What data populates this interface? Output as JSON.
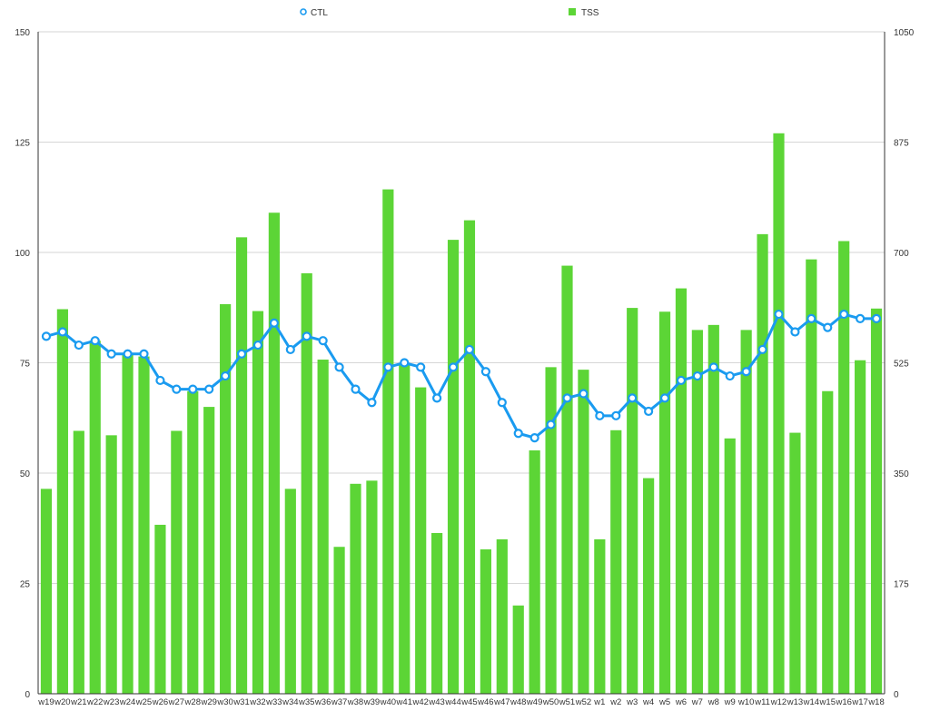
{
  "chart_data": {
    "type": "bar",
    "categories": [
      "w19",
      "w20",
      "w21",
      "w22",
      "w23",
      "w24",
      "w25",
      "w26",
      "w27",
      "w28",
      "w29",
      "w30",
      "w31",
      "w32",
      "w33",
      "w34",
      "w35",
      "w36",
      "w37",
      "w38",
      "w39",
      "w40",
      "w41",
      "w42",
      "w43",
      "w44",
      "w45",
      "w46",
      "w47",
      "w48",
      "w49",
      "w50",
      "w51",
      "w52",
      "w1",
      "w2",
      "w3",
      "w4",
      "w5",
      "w6",
      "w7",
      "w8",
      "w9",
      "w10",
      "w11",
      "w12",
      "w13",
      "w14",
      "w15",
      "w16",
      "w17",
      "w18"
    ],
    "series": [
      {
        "name": "TSS",
        "type": "bar",
        "axis": "right",
        "color": "#5cd536",
        "values": [
          325,
          610,
          417,
          560,
          410,
          540,
          535,
          268,
          417,
          480,
          455,
          618,
          724,
          607,
          763,
          325,
          667,
          530,
          233,
          333,
          338,
          800,
          525,
          486,
          255,
          720,
          751,
          229,
          245,
          140,
          386,
          518,
          679,
          514,
          245,
          418,
          612,
          342,
          606,
          643,
          577,
          585,
          405,
          577,
          729,
          889,
          414,
          689,
          480,
          718,
          529,
          611
        ]
      },
      {
        "name": "CTL",
        "type": "line",
        "axis": "left",
        "color": "#1a9bf0",
        "values": [
          81,
          82,
          79,
          80,
          77,
          77,
          77,
          71,
          69,
          69,
          69,
          72,
          77,
          79,
          84,
          78,
          81,
          80,
          74,
          69,
          66,
          74,
          75,
          74,
          67,
          74,
          78,
          73,
          66,
          59,
          58,
          61,
          67,
          68,
          63,
          63,
          67,
          64,
          67,
          71,
          72,
          74,
          72,
          73,
          78,
          86,
          82,
          85,
          83,
          86,
          85,
          85
        ]
      }
    ],
    "left_axis": {
      "ylim": [
        0,
        150
      ],
      "ticks": [
        "0",
        "25",
        "50",
        "75",
        "100",
        "125",
        "150"
      ]
    },
    "right_axis": {
      "ylim": [
        0,
        1050
      ],
      "ticks": [
        "0",
        "175",
        "350",
        "525",
        "700",
        "875",
        "1050"
      ]
    },
    "grid": true,
    "legend": {
      "placement": "top",
      "items": [
        "CTL",
        "TSS"
      ]
    }
  }
}
